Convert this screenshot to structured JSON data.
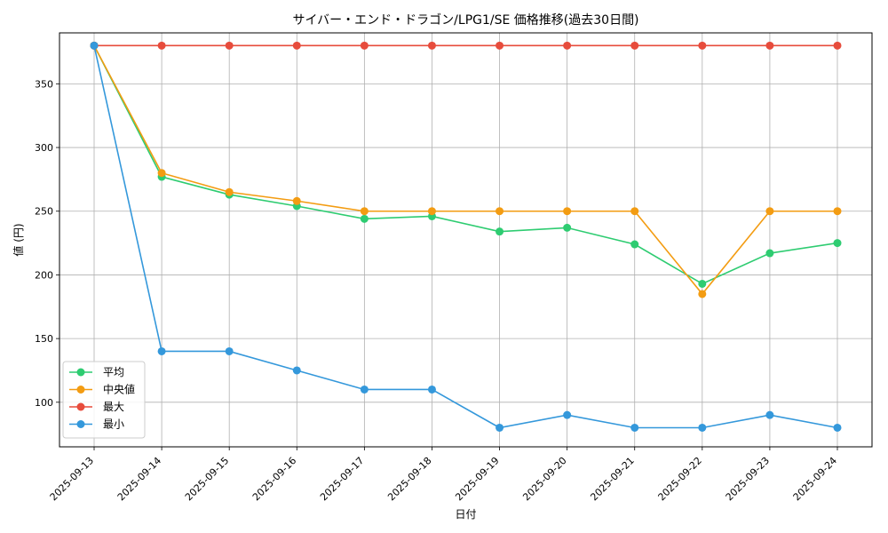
{
  "chart_data": {
    "type": "line",
    "title": "サイバー・エンド・ドラゴン/LPG1/SE 価格推移(過去30日間)",
    "xlabel": "日付",
    "ylabel": "値 (円)",
    "categories": [
      "2025-09-13",
      "2025-09-14",
      "2025-09-15",
      "2025-09-16",
      "2025-09-17",
      "2025-09-18",
      "2025-09-19",
      "2025-09-20",
      "2025-09-21",
      "2025-09-22",
      "2025-09-23",
      "2025-09-24"
    ],
    "ylim": [
      65,
      390
    ],
    "yticks": [
      100,
      150,
      200,
      250,
      300,
      350
    ],
    "grid": true,
    "legend_position": "lower-left",
    "series": [
      {
        "name": "平均",
        "color": "#2ecc71",
        "values": [
          380,
          277,
          263,
          254,
          244,
          246,
          234,
          237,
          224,
          193,
          217,
          225
        ]
      },
      {
        "name": "中央値",
        "color": "#f39c12",
        "values": [
          380,
          280,
          265,
          258,
          250,
          250,
          250,
          250,
          250,
          185,
          250,
          250
        ]
      },
      {
        "name": "最大",
        "color": "#e74c3c",
        "values": [
          380,
          380,
          380,
          380,
          380,
          380,
          380,
          380,
          380,
          380,
          380,
          380
        ]
      },
      {
        "name": "最小",
        "color": "#3498db",
        "values": [
          380,
          140,
          140,
          125,
          110,
          110,
          80,
          90,
          80,
          80,
          90,
          80
        ]
      }
    ]
  }
}
